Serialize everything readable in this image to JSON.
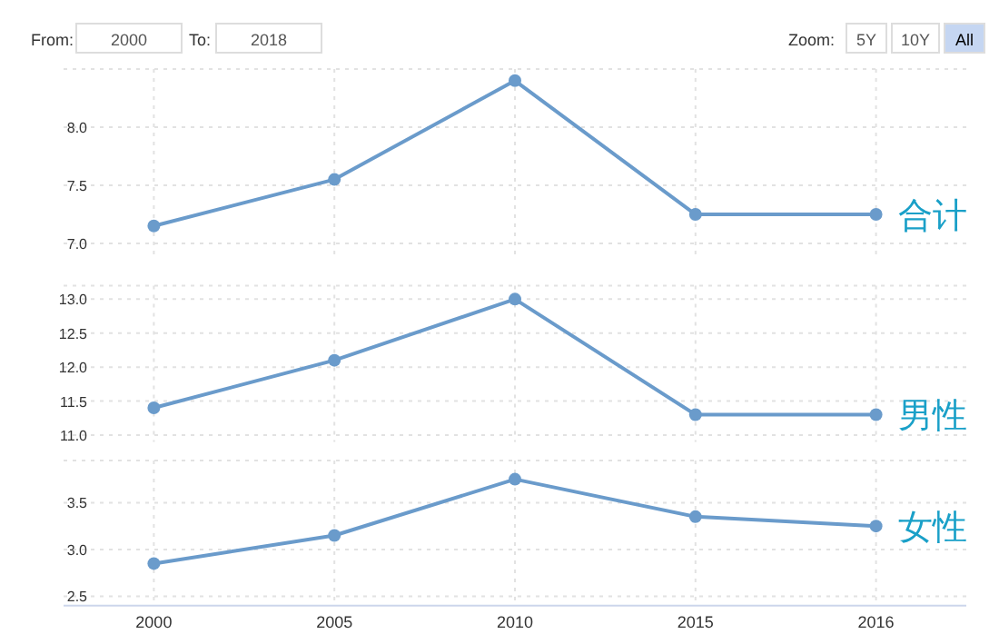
{
  "chart_data": [
    {
      "type": "line",
      "categories": [
        "2000",
        "2005",
        "2010",
        "2015",
        "2016"
      ],
      "series": [
        {
          "name": "合计",
          "color": "#6a9bcb",
          "values": [
            7.15,
            7.55,
            8.4,
            7.25,
            7.25
          ]
        }
      ],
      "ylim": [
        6.9,
        8.5
      ],
      "yticks": [
        {
          "value": 7,
          "label": "7.0"
        },
        {
          "value": 7.5,
          "label": "7.5"
        },
        {
          "value": 8.0,
          "label": "8.0"
        }
      ],
      "grid": true,
      "marker": "circle",
      "tick_labels": "y",
      "annotations": [
        "From:",
        "2000",
        "To:",
        "2018",
        "Zoom:",
        "5Y",
        "10Y",
        "All"
      ]
    },
    {
      "type": "line",
      "categories": [
        "2000",
        "2005",
        "2010",
        "2015",
        "2016"
      ],
      "series": [
        {
          "name": "男性",
          "color": "#6a9bcb",
          "values": [
            11.4,
            12.1,
            13.0,
            11.3,
            11.3
          ]
        }
      ],
      "ylim": [
        10.9,
        13.2
      ],
      "yticks": [
        {
          "value": 11,
          "label": "11.0"
        },
        11.5,
        {
          "value": 12,
          "label": "12.0"
        },
        12.5,
        {
          "value": 13,
          "label": "13.0"
        }
      ],
      "grid": true,
      "marker": "circle",
      "tick_labels": "y"
    },
    {
      "type": "line",
      "categories": [
        "2000",
        "2005",
        "2010",
        "2015",
        "2016"
      ],
      "series": [
        {
          "name": "女性",
          "color": "#6a9bcb",
          "values": [
            2.85,
            3.15,
            3.75,
            3.35,
            3.25
          ]
        }
      ],
      "ylim": [
        2.4,
        3.95
      ],
      "yticks": [
        2.5,
        {
          "value": 3,
          "label": "3.0"
        },
        3.5
      ],
      "grid": true,
      "marker": "circle"
    }
  ]
}
